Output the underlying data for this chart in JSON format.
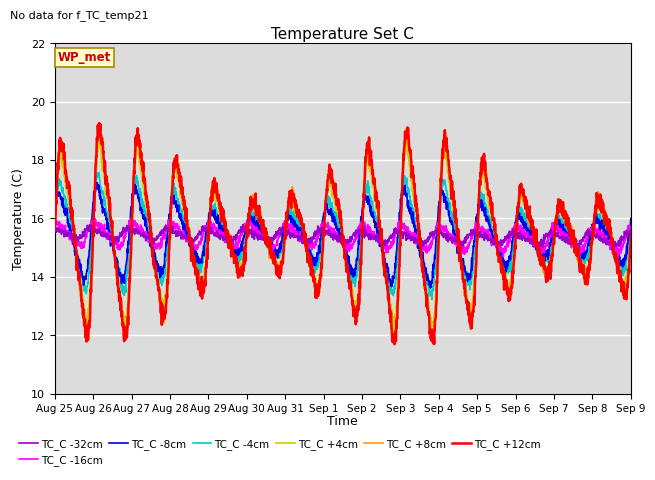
{
  "title": "Temperature Set C",
  "subtitle": "No data for f_TC_temp21",
  "xlabel": "Time",
  "ylabel": "Temperature (C)",
  "ylim": [
    10,
    22
  ],
  "yticks": [
    10,
    12,
    14,
    16,
    18,
    20,
    22
  ],
  "bg_color": "#dcdcdc",
  "series_colors": {
    "TC_C -32cm": "#9900cc",
    "TC_C -16cm": "#ff00ff",
    "TC_C -8cm": "#0000ee",
    "TC_C -4cm": "#00cccc",
    "TC_C +4cm": "#cccc00",
    "TC_C +8cm": "#ff9900",
    "TC_C +12cm": "#ff0000"
  },
  "n_days": 15,
  "x_tick_labels": [
    "Aug 25",
    "Aug 26",
    "Aug 27",
    "Aug 28",
    "Aug 29",
    "Aug 30",
    "Aug 31",
    "Sep 1",
    "Sep 2",
    "Sep 3",
    "Sep 4",
    "Sep 5",
    "Sep 6",
    "Sep 7",
    "Sep 8",
    "Sep 9"
  ],
  "font_size": 9,
  "title_font_size": 11
}
